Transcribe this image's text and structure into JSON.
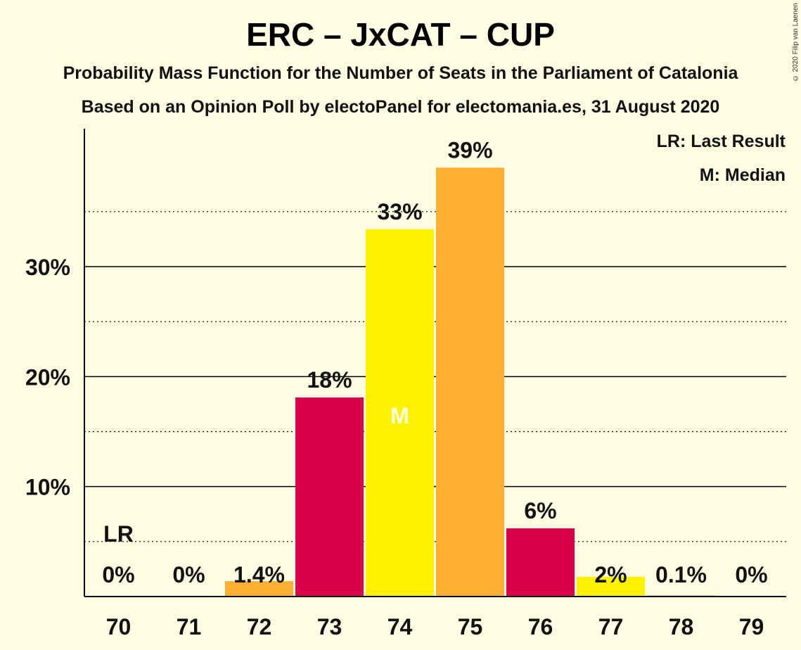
{
  "header": {
    "title": "ERC – JxCAT – CUP",
    "subtitle1": "Probability Mass Function for the Number of Seats in the Parliament of Catalonia",
    "subtitle2": "Based on an Opinion Poll by electoPanel for electomania.es, 31 August 2020",
    "copyright": "© 2020 Filip van Laenen"
  },
  "legend": {
    "lr": "LR: Last Result",
    "median": "M: Median"
  },
  "markers": {
    "last_result_label": "LR",
    "median_label": "M"
  },
  "colors": {
    "background": "#FFFDE2",
    "red": "#D9004C",
    "orange": "#FFB033",
    "yellow": "#FFF200"
  },
  "chart_data": {
    "type": "bar",
    "categories": [
      "70",
      "71",
      "72",
      "73",
      "74",
      "75",
      "76",
      "77",
      "78",
      "79"
    ],
    "values": [
      0,
      0,
      1.4,
      18.1,
      33.4,
      39.0,
      6.2,
      1.8,
      0.1,
      0
    ],
    "value_labels": [
      "0%",
      "0%",
      "1.4%",
      "18%",
      "33%",
      "39%",
      "6%",
      "2%",
      "0.1%",
      "0%"
    ],
    "bar_colors": [
      "#FFB033",
      "#FFF200",
      "#FFB033",
      "#D9004C",
      "#FFF200",
      "#FFB033",
      "#D9004C",
      "#FFF200",
      "#FFB033",
      "#FFF200"
    ],
    "yticks": [
      10,
      20,
      30
    ],
    "ytick_labels": [
      "10%",
      "20%",
      "30%"
    ],
    "ylim": [
      0,
      42.5
    ],
    "last_result_category": "70",
    "median_category": "74",
    "grid": true,
    "legend_position": "top-right"
  }
}
